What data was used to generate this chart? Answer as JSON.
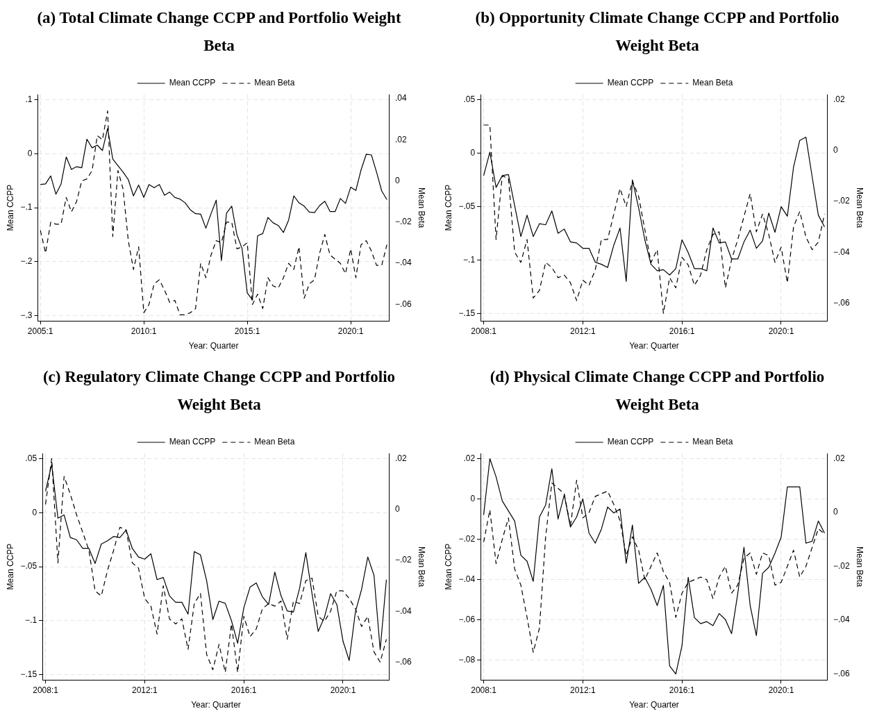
{
  "chart_data": [
    {
      "type": "line",
      "title": "(a) Total Climate Change CCPP and Portfolio Weight Beta",
      "xlabel": "Year: Quarter",
      "ylabel": "Mean CCPP",
      "y2label": "Mean Beta",
      "grid": true,
      "legend": "top",
      "marker": "none",
      "categories": [
        "2005:1",
        null,
        null,
        null,
        null,
        null,
        null,
        null,
        null,
        null,
        null,
        null,
        null,
        null,
        null,
        null,
        null,
        null,
        null,
        null,
        "2010:1",
        null,
        null,
        null,
        null,
        null,
        null,
        null,
        null,
        null,
        null,
        null,
        null,
        null,
        null,
        null,
        null,
        null,
        null,
        null,
        "2015:1",
        null,
        null,
        null,
        null,
        null,
        null,
        null,
        null,
        null,
        null,
        null,
        null,
        null,
        null,
        null,
        null,
        null,
        null,
        null,
        "2020:1",
        null,
        null,
        null,
        null,
        null,
        null,
        null
      ],
      "ylim": [
        -0.31,
        0.11
      ],
      "yticks": [
        {
          "value": -0.3,
          "label": "−.3"
        },
        {
          "value": -0.2,
          "label": "−.2"
        },
        {
          "value": -0.1,
          "label": "−.1"
        },
        {
          "value": 0,
          "label": "0"
        },
        {
          "value": 0.1,
          "label": ".1"
        }
      ],
      "y2lim": [
        -0.068,
        0.042
      ],
      "y2ticks": [
        {
          "value": -0.06,
          "label": "−.06"
        },
        {
          "value": -0.04,
          "label": "−.04"
        },
        {
          "value": -0.02,
          "label": "−.02"
        },
        {
          "value": 0,
          "label": "0"
        },
        {
          "value": 0.02,
          "label": ".02"
        },
        {
          "value": 0.04,
          "label": ".04"
        }
      ],
      "series": [
        {
          "name": "Mean CCPP",
          "color": "#000000",
          "line_style": "solid",
          "axis": "y",
          "values": [
            -0.057,
            -0.056,
            -0.041,
            -0.075,
            -0.056,
            -0.006,
            -0.029,
            -0.024,
            -0.026,
            0.027,
            0.011,
            0.016,
            0.006,
            0.047,
            -0.01,
            -0.022,
            -0.034,
            -0.048,
            -0.078,
            -0.058,
            -0.081,
            -0.057,
            -0.063,
            -0.057,
            -0.077,
            -0.071,
            -0.081,
            -0.084,
            -0.091,
            -0.104,
            -0.111,
            -0.112,
            -0.138,
            -0.111,
            -0.086,
            -0.198,
            -0.11,
            -0.097,
            -0.15,
            -0.176,
            -0.258,
            -0.271,
            -0.152,
            -0.148,
            -0.118,
            -0.128,
            -0.133,
            -0.146,
            -0.123,
            -0.078,
            -0.091,
            -0.097,
            -0.108,
            -0.109,
            -0.096,
            -0.088,
            -0.107,
            -0.107,
            -0.083,
            -0.092,
            -0.062,
            -0.068,
            -0.03,
            -0.001,
            -0.002,
            -0.034,
            -0.069,
            -0.085
          ]
        },
        {
          "name": "Mean Beta",
          "color": "#000000",
          "line_style": "dashed",
          "axis": "y2",
          "values": [
            -0.024,
            -0.035,
            -0.02,
            -0.021,
            -0.021,
            -0.008,
            -0.015,
            -0.01,
            0.0,
            0.001,
            0.005,
            0.022,
            0.02,
            0.034,
            -0.027,
            0.005,
            -0.004,
            -0.029,
            -0.043,
            -0.032,
            -0.064,
            -0.06,
            -0.05,
            -0.048,
            -0.053,
            -0.059,
            -0.058,
            -0.065,
            -0.065,
            -0.064,
            -0.062,
            -0.04,
            -0.047,
            -0.036,
            -0.029,
            -0.03,
            -0.02,
            -0.02,
            -0.033,
            -0.032,
            -0.03,
            -0.06,
            -0.055,
            -0.062,
            -0.047,
            -0.051,
            -0.052,
            -0.047,
            -0.04,
            -0.043,
            -0.032,
            -0.057,
            -0.05,
            -0.048,
            -0.035,
            -0.026,
            -0.036,
            -0.038,
            -0.04,
            -0.045,
            -0.033,
            -0.047,
            -0.031,
            -0.029,
            -0.034,
            -0.041,
            -0.041,
            -0.031
          ]
        }
      ]
    },
    {
      "type": "line",
      "title": "(b) Opportunity Climate Change CCPP and Portfolio Weight Beta",
      "xlabel": "Year: Quarter",
      "ylabel": "Mean CCPP",
      "y2label": "Mean Beta",
      "grid": true,
      "legend": "top",
      "marker": "none",
      "categories": [
        "2008:1",
        null,
        null,
        null,
        null,
        null,
        null,
        null,
        null,
        null,
        null,
        null,
        null,
        null,
        null,
        null,
        "2012:1",
        null,
        null,
        null,
        null,
        null,
        null,
        null,
        null,
        null,
        null,
        null,
        null,
        null,
        null,
        null,
        "2016:1",
        null,
        null,
        null,
        null,
        null,
        null,
        null,
        null,
        null,
        null,
        null,
        null,
        null,
        null,
        null,
        "2020:1",
        null,
        null,
        null,
        null,
        null,
        null,
        null
      ],
      "ylim": [
        -0.157,
        0.055
      ],
      "yticks": [
        {
          "value": -0.15,
          "label": "−.15"
        },
        {
          "value": -0.1,
          "label": "−.1"
        },
        {
          "value": -0.05,
          "label": "−.05"
        },
        {
          "value": 0,
          "label": "0"
        },
        {
          "value": 0.05,
          "label": ".05"
        }
      ],
      "y2lim": [
        -0.067,
        0.022
      ],
      "y2ticks": [
        {
          "value": -0.06,
          "label": "−.06"
        },
        {
          "value": -0.04,
          "label": "−.04"
        },
        {
          "value": -0.02,
          "label": "−.02"
        },
        0,
        {
          "value": 0.02,
          "label": ".02"
        }
      ],
      "series": [
        {
          "name": "Mean CCPP",
          "color": "#000000",
          "line_style": "solid",
          "axis": "y",
          "values": [
            -0.021,
            0.001,
            -0.032,
            -0.021,
            -0.02,
            -0.049,
            -0.078,
            -0.058,
            -0.078,
            -0.066,
            -0.067,
            -0.054,
            -0.075,
            -0.071,
            -0.083,
            -0.084,
            -0.089,
            -0.089,
            -0.102,
            -0.104,
            -0.107,
            -0.086,
            -0.07,
            -0.12,
            -0.025,
            -0.051,
            -0.081,
            -0.104,
            -0.11,
            -0.109,
            -0.114,
            -0.108,
            -0.081,
            -0.093,
            -0.108,
            -0.108,
            -0.11,
            -0.07,
            -0.084,
            -0.083,
            -0.099,
            -0.099,
            -0.083,
            -0.072,
            -0.089,
            -0.082,
            -0.056,
            -0.074,
            -0.05,
            -0.059,
            -0.013,
            0.012,
            0.015,
            -0.022,
            -0.058,
            -0.069
          ]
        },
        {
          "name": "Mean Beta",
          "color": "#000000",
          "line_style": "dashed",
          "axis": "y2",
          "values": [
            0.01,
            0.01,
            -0.035,
            -0.01,
            -0.011,
            -0.04,
            -0.044,
            -0.035,
            -0.058,
            -0.055,
            -0.044,
            -0.046,
            -0.05,
            -0.049,
            -0.052,
            -0.059,
            -0.051,
            -0.053,
            -0.047,
            -0.035,
            -0.035,
            -0.025,
            -0.015,
            -0.022,
            -0.012,
            -0.018,
            -0.031,
            -0.044,
            -0.039,
            -0.064,
            -0.05,
            -0.054,
            -0.042,
            -0.045,
            -0.053,
            -0.049,
            -0.039,
            -0.033,
            -0.032,
            -0.054,
            -0.043,
            -0.035,
            -0.026,
            -0.017,
            -0.032,
            -0.025,
            -0.033,
            -0.044,
            -0.038,
            -0.052,
            -0.03,
            -0.024,
            -0.034,
            -0.039,
            -0.036,
            -0.025
          ]
        }
      ]
    },
    {
      "type": "line",
      "title": "(c) Regulatory Climate Change CCPP and Portfolio Weight Beta",
      "xlabel": "Year: Quarter",
      "ylabel": "Mean CCPP",
      "y2label": "Mean Beta",
      "grid": true,
      "legend": "top",
      "marker": "none",
      "categories": [
        "2008:1",
        null,
        null,
        null,
        null,
        null,
        null,
        null,
        null,
        null,
        null,
        null,
        null,
        null,
        null,
        null,
        "2012:1",
        null,
        null,
        null,
        null,
        null,
        null,
        null,
        null,
        null,
        null,
        null,
        null,
        null,
        null,
        null,
        "2016:1",
        null,
        null,
        null,
        null,
        null,
        null,
        null,
        null,
        null,
        null,
        null,
        null,
        null,
        null,
        null,
        "2020:1",
        null,
        null,
        null,
        null,
        null,
        null,
        null
      ],
      "ylim": [
        -0.155,
        0.055
      ],
      "yticks": [
        {
          "value": -0.15,
          "label": "−.15"
        },
        {
          "value": -0.1,
          "label": "−.1"
        },
        {
          "value": -0.05,
          "label": "−.05"
        },
        {
          "value": 0,
          "label": "0"
        },
        {
          "value": 0.05,
          "label": ".05"
        }
      ],
      "y2lim": [
        -0.067,
        0.022
      ],
      "y2ticks": [
        {
          "value": -0.06,
          "label": "−.06"
        },
        {
          "value": -0.04,
          "label": "−.04"
        },
        {
          "value": -0.02,
          "label": "−.02"
        },
        0,
        {
          "value": 0.02,
          "label": ".02"
        }
      ],
      "series": [
        {
          "name": "Mean CCPP",
          "color": "#000000",
          "line_style": "solid",
          "axis": "y",
          "values": [
            0.02,
            0.045,
            -0.005,
            -0.002,
            -0.023,
            -0.025,
            -0.033,
            -0.033,
            -0.047,
            -0.029,
            -0.026,
            -0.022,
            -0.023,
            -0.016,
            -0.033,
            -0.041,
            -0.043,
            -0.038,
            -0.062,
            -0.06,
            -0.077,
            -0.083,
            -0.083,
            -0.094,
            -0.036,
            -0.039,
            -0.063,
            -0.099,
            -0.082,
            -0.084,
            -0.1,
            -0.121,
            -0.088,
            -0.069,
            -0.065,
            -0.078,
            -0.085,
            -0.055,
            -0.077,
            -0.091,
            -0.092,
            -0.07,
            -0.037,
            -0.075,
            -0.11,
            -0.097,
            -0.075,
            -0.085,
            -0.119,
            -0.137,
            -0.092,
            -0.071,
            -0.041,
            -0.058,
            -0.127,
            -0.062
          ]
        },
        {
          "name": "Mean Beta",
          "color": "#000000",
          "line_style": "dashed",
          "axis": "y2",
          "values": [
            0.002,
            0.02,
            -0.021,
            0.013,
            0.006,
            -0.002,
            -0.009,
            -0.016,
            -0.032,
            -0.034,
            -0.024,
            -0.016,
            -0.007,
            -0.008,
            -0.021,
            -0.023,
            -0.035,
            -0.038,
            -0.049,
            -0.03,
            -0.043,
            -0.045,
            -0.043,
            -0.055,
            -0.037,
            -0.033,
            -0.057,
            -0.063,
            -0.053,
            -0.064,
            -0.045,
            -0.064,
            -0.042,
            -0.05,
            -0.047,
            -0.039,
            -0.037,
            -0.038,
            -0.036,
            -0.051,
            -0.036,
            -0.037,
            -0.028,
            -0.027,
            -0.042,
            -0.044,
            -0.04,
            -0.032,
            -0.032,
            -0.035,
            -0.039,
            -0.046,
            -0.042,
            -0.056,
            -0.06,
            -0.051
          ]
        }
      ]
    },
    {
      "type": "line",
      "title": "(d) Physical Climate Change CCPP and Portfolio Weight Beta",
      "xlabel": "Year: Quarter",
      "ylabel": "Mean CCPP",
      "y2label": "Mean Beta",
      "grid": true,
      "legend": "top",
      "marker": "none",
      "categories": [
        "2008:1",
        null,
        null,
        null,
        null,
        null,
        null,
        null,
        null,
        null,
        null,
        null,
        null,
        null,
        null,
        null,
        "2012:1",
        null,
        null,
        null,
        null,
        null,
        null,
        null,
        null,
        null,
        null,
        null,
        null,
        null,
        null,
        null,
        "2016:1",
        null,
        null,
        null,
        null,
        null,
        null,
        null,
        null,
        null,
        null,
        null,
        null,
        null,
        null,
        null,
        "2020:1",
        null,
        null,
        null,
        null,
        null,
        null,
        null
      ],
      "ylim": [
        -0.09,
        0.0226
      ],
      "yticks": [
        {
          "value": -0.08,
          "label": "−.08"
        },
        {
          "value": -0.06,
          "label": "−.06"
        },
        {
          "value": -0.04,
          "label": "−.04"
        },
        {
          "value": -0.02,
          "label": "−.02"
        },
        {
          "value": 0,
          "label": "0"
        },
        {
          "value": 0.02,
          "label": ".02"
        }
      ],
      "y2lim": [
        -0.0623,
        0.022
      ],
      "y2ticks": [
        {
          "value": -0.06,
          "label": "−.06"
        },
        {
          "value": -0.04,
          "label": "−.04"
        },
        {
          "value": -0.02,
          "label": "−.02"
        },
        {
          "value": 0,
          "label": "0"
        },
        {
          "value": 0.02,
          "label": ".02"
        }
      ],
      "series": [
        {
          "name": "Mean CCPP",
          "color": "#000000",
          "line_style": "solid",
          "axis": "y",
          "values": [
            -0.008,
            0.02,
            0.011,
            -0.001,
            -0.006,
            -0.011,
            -0.028,
            -0.031,
            -0.041,
            -0.009,
            -0.003,
            0.015,
            -0.01,
            0.002,
            -0.014,
            -0.009,
            0.0,
            -0.017,
            -0.022,
            -0.015,
            -0.004,
            -0.007,
            -0.005,
            -0.032,
            -0.013,
            -0.042,
            -0.039,
            -0.045,
            -0.053,
            -0.043,
            -0.083,
            -0.087,
            -0.073,
            -0.039,
            -0.059,
            -0.062,
            -0.061,
            -0.063,
            -0.057,
            -0.06,
            -0.067,
            -0.047,
            -0.024,
            -0.053,
            -0.068,
            -0.037,
            -0.034,
            -0.027,
            -0.019,
            0.006,
            0.006,
            0.006,
            -0.022,
            -0.021,
            -0.011,
            -0.017
          ]
        },
        {
          "name": "Mean Beta",
          "color": "#000000",
          "line_style": "dashed",
          "axis": "y2",
          "values": [
            -0.011,
            0.001,
            -0.019,
            -0.01,
            -0.002,
            -0.021,
            -0.027,
            -0.039,
            -0.052,
            -0.043,
            -0.009,
            0.011,
            0.009,
            0.007,
            -0.005,
            0.012,
            -0.002,
            0.0,
            0.006,
            0.007,
            0.008,
            0.003,
            -0.003,
            -0.016,
            -0.009,
            -0.014,
            -0.025,
            -0.02,
            -0.015,
            -0.022,
            -0.026,
            -0.039,
            -0.03,
            -0.026,
            -0.025,
            -0.024,
            -0.025,
            -0.032,
            -0.024,
            -0.02,
            -0.03,
            -0.027,
            -0.017,
            -0.015,
            -0.023,
            -0.015,
            -0.016,
            -0.027,
            -0.026,
            -0.02,
            -0.014,
            -0.024,
            -0.02,
            -0.013,
            -0.006,
            -0.008
          ]
        }
      ]
    }
  ]
}
